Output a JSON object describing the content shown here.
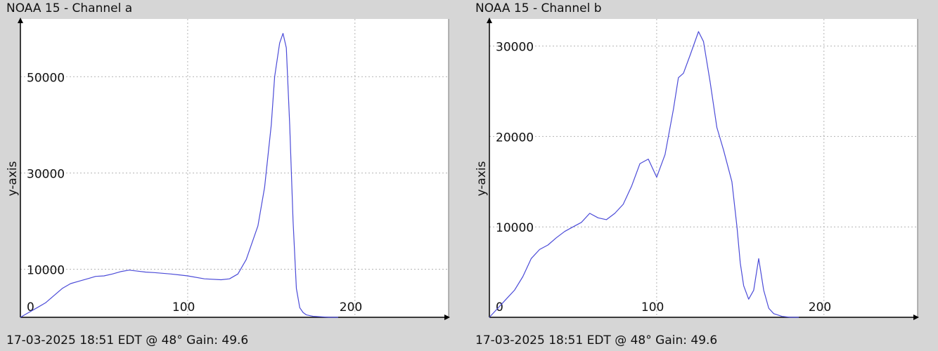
{
  "charts": [
    {
      "title": "NOAA 15 - Channel a",
      "footer": "17-03-2025 18:51 EDT @ 48° Gain: 49.6"
    },
    {
      "title": "NOAA 15 - Channel b",
      "footer": "17-03-2025 18:51 EDT @ 48° Gain: 49.6"
    }
  ],
  "chart_data": [
    {
      "type": "line",
      "title": "NOAA 15 - Channel a",
      "xlabel": "",
      "ylabel": "y-axis",
      "xlim": [
        0,
        256
      ],
      "ylim": [
        0,
        62000
      ],
      "xticks": [
        0,
        100,
        200
      ],
      "yticks": [
        10000,
        30000,
        50000
      ],
      "grid": true,
      "line_color": "#4b4bd8",
      "series": [
        {
          "x": [
            0,
            5,
            10,
            15,
            20,
            25,
            30,
            35,
            40,
            45,
            50,
            55,
            60,
            65,
            70,
            75,
            80,
            90,
            100,
            110,
            120,
            125,
            130,
            135,
            138,
            142,
            146,
            150,
            152,
            155,
            157,
            159,
            161,
            163,
            165,
            167,
            169,
            171,
            175,
            180,
            185,
            190
          ],
          "y": [
            0,
            1000,
            2000,
            3000,
            4500,
            6000,
            7000,
            7500,
            8000,
            8500,
            8600,
            9000,
            9500,
            9800,
            9600,
            9400,
            9300,
            9000,
            8600,
            8000,
            7800,
            8000,
            9000,
            12000,
            15000,
            19000,
            27000,
            40000,
            50000,
            57000,
            59000,
            56000,
            40000,
            20000,
            6000,
            2000,
            1000,
            500,
            200,
            100,
            0,
            0
          ]
        }
      ]
    },
    {
      "type": "line",
      "title": "NOAA 15 - Channel b",
      "xlabel": "",
      "ylabel": "y-axis",
      "xlim": [
        0,
        256
      ],
      "ylim": [
        0,
        33000
      ],
      "xticks": [
        0,
        100,
        200
      ],
      "yticks": [
        10000,
        20000,
        30000
      ],
      "grid": true,
      "line_color": "#4b4bd8",
      "series": [
        {
          "x": [
            0,
            5,
            10,
            15,
            20,
            25,
            30,
            35,
            40,
            45,
            50,
            55,
            60,
            65,
            70,
            75,
            80,
            85,
            90,
            95,
            100,
            105,
            110,
            113,
            116,
            120,
            125,
            128,
            132,
            136,
            140,
            145,
            148,
            150,
            152,
            155,
            158,
            161,
            164,
            167,
            170,
            175,
            180,
            185
          ],
          "y": [
            0,
            1000,
            2000,
            3000,
            4500,
            6500,
            7500,
            8000,
            8800,
            9500,
            10000,
            10500,
            11500,
            11000,
            10800,
            11500,
            12500,
            14500,
            17000,
            17500,
            15500,
            18000,
            23000,
            26500,
            27000,
            29000,
            31600,
            30500,
            26000,
            21000,
            18500,
            15000,
            10000,
            6000,
            3500,
            2000,
            3000,
            6500,
            3000,
            1000,
            400,
            100,
            0,
            0
          ]
        }
      ]
    }
  ]
}
